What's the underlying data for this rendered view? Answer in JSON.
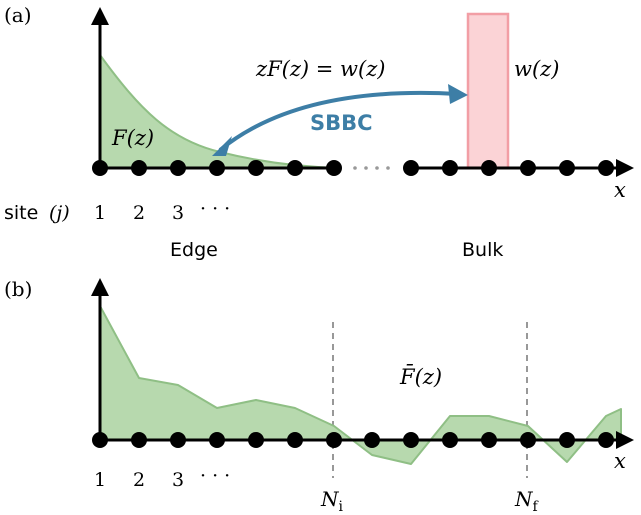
{
  "panel_a": {
    "label": "(a)",
    "x_axis_label": "x",
    "edge_function_label": "F(z)",
    "relation_label": "zF(z) = w(z)",
    "bulk_function_label": "w(z)",
    "arrow_label": "SBBC",
    "ellipsis_dots": "· · ·",
    "site_prefix": "site",
    "site_index": "(j)",
    "site_numbers": [
      "1",
      "2",
      "3",
      "· · ·"
    ],
    "edge_label": "Edge",
    "bulk_label": "Bulk"
  },
  "panel_b": {
    "label": "(b)",
    "x_axis_label": "x",
    "function_label": "F̄(z)",
    "site_numbers": [
      "1",
      "2",
      "3",
      "· · ·"
    ],
    "marker_initial": "N",
    "marker_initial_sub": "i",
    "marker_final": "N",
    "marker_final_sub": "f"
  },
  "colors": {
    "fill_green": "#b7d9ae",
    "stroke_green": "#8fbf85",
    "bulk_fill": "#fbd3d6",
    "bulk_stroke": "#f29ea5",
    "arrow_blue": "#3d7ea6",
    "axis": "#000000",
    "dashed": "#777777"
  }
}
